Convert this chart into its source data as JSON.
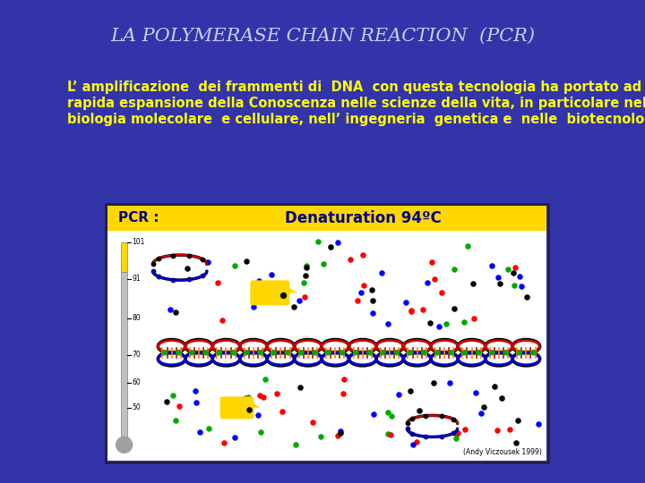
{
  "bg_color": "#3333aa",
  "title": "LA POLYMERASE CHAIN REACTION  (PCR)",
  "title_color": "#ccccee",
  "title_fontsize": 15,
  "body_text_line1": "L’ amplificazione  dei frammenti di  DNA  con questa tecnologia ha portato ad una",
  "body_text_line2": "rapida espansione della Conoscenza nelle scienze della vita, in particolare nella",
  "body_text_line3": "biologia molecolare  e cellulare, nell’ ingegneria  genetica e  nelle  biotecnologie.",
  "body_color": "#ffff00",
  "body_fontsize": 10.5,
  "pcr_label": "PCR :",
  "pcr_label_color": "#000080",
  "denaturation_label": "Denaturation 94ºC",
  "denaturation_color": "#000080",
  "header_bg": "#ffd700",
  "image_bg": "#ffffff",
  "thermometer_yellow": "#ffd700",
  "thermometer_gray": "#c0c0c0",
  "thermometer_bulb": "#a0a0a0",
  "tick_labels": [
    "101",
    "91",
    "80",
    "70",
    "60",
    "50"
  ],
  "credit_text": "(Andy Viczousek 1999)",
  "dot_colors": [
    "#ff0000",
    "#00aa00",
    "#000000",
    "#0000ff"
  ],
  "yellow_blob_color": "#ffd700",
  "dna_red": "#cc0000",
  "dna_blue": "#0000cc",
  "dna_black": "#000000",
  "dna_green": "#00aa00",
  "dna_orange": "#ff8800",
  "dna_white": "#ffffff"
}
